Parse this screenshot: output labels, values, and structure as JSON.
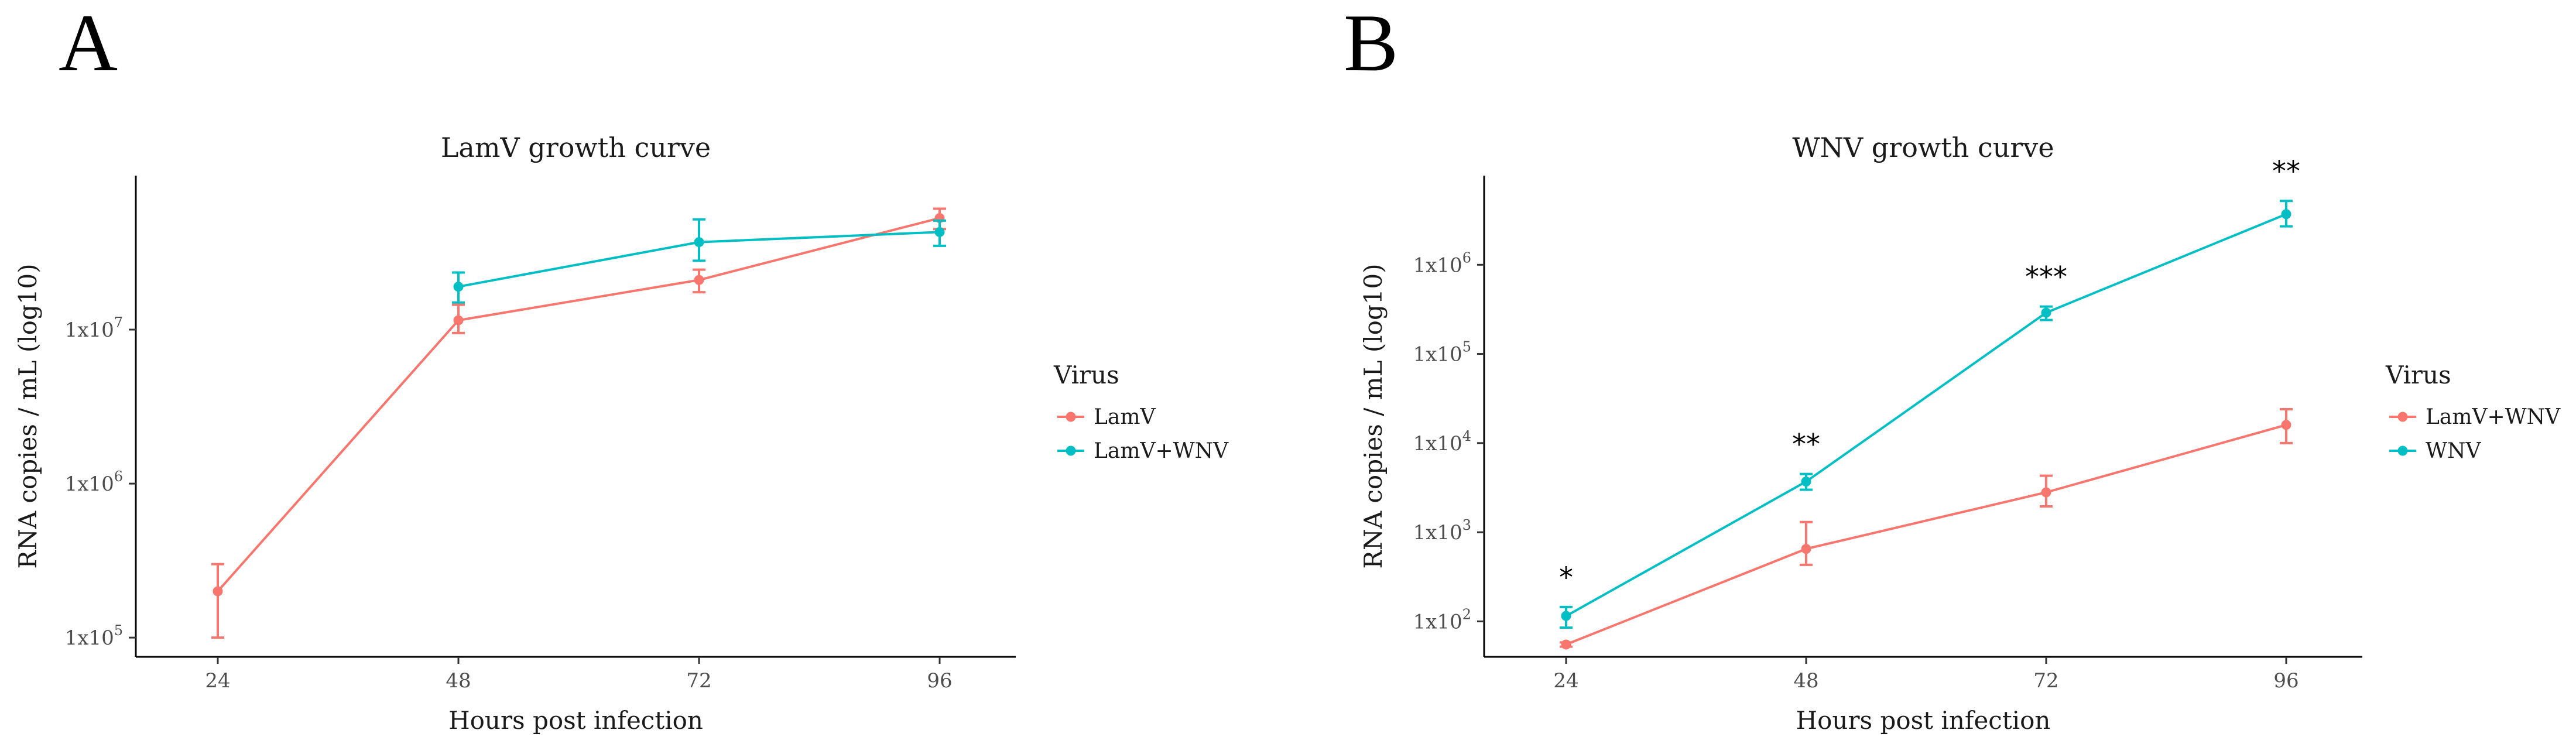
{
  "figure": {
    "panels": [
      "A",
      "B"
    ]
  },
  "chart_data": [
    {
      "panel": "A",
      "type": "line",
      "title": "LamV growth curve",
      "xlabel": "Hours post infection",
      "ylabel": "RNA copies / mL (log10)",
      "y_scale": "log10",
      "ylim": [
        75000,
        100000000
      ],
      "x_ticks": [
        24,
        48,
        72,
        96
      ],
      "y_ticks": [
        {
          "value": 100000,
          "base": "1x10",
          "exp": "5"
        },
        {
          "value": 1000000,
          "base": "1x10",
          "exp": "6"
        },
        {
          "value": 10000000,
          "base": "1x10",
          "exp": "7"
        }
      ],
      "legend": {
        "title": "Virus",
        "position": "right"
      },
      "series": [
        {
          "name": "LamV",
          "color": "#F8766D",
          "points": [
            {
              "x": 24,
              "y": 200000,
              "lower": 100000,
              "upper": 300000
            },
            {
              "x": 48,
              "y": 11500000,
              "lower": 9500000,
              "upper": 14500000
            },
            {
              "x": 72,
              "y": 21000000,
              "lower": 17500000,
              "upper": 24500000
            },
            {
              "x": 96,
              "y": 53000000,
              "lower": 45000000,
              "upper": 61000000
            }
          ]
        },
        {
          "name": "LamV+WNV",
          "color": "#00BFC4",
          "points": [
            {
              "x": 48,
              "y": 19000000,
              "lower": 15000000,
              "upper": 23500000
            },
            {
              "x": 72,
              "y": 37000000,
              "lower": 28000000,
              "upper": 52000000
            },
            {
              "x": 96,
              "y": 43000000,
              "lower": 35000000,
              "upper": 51000000
            }
          ]
        }
      ],
      "annotations": []
    },
    {
      "panel": "B",
      "type": "line",
      "title": "WNV growth curve",
      "xlabel": "Hours post infection",
      "ylabel": "RNA copies / mL (log10)",
      "y_scale": "log10",
      "ylim": [
        40,
        10000000
      ],
      "x_ticks": [
        24,
        48,
        72,
        96
      ],
      "y_ticks": [
        {
          "value": 100,
          "base": "1x10",
          "exp": "2"
        },
        {
          "value": 1000,
          "base": "1x10",
          "exp": "3"
        },
        {
          "value": 10000,
          "base": "1x10",
          "exp": "4"
        },
        {
          "value": 100000,
          "base": "1x10",
          "exp": "5"
        },
        {
          "value": 1000000,
          "base": "1x10",
          "exp": "6"
        }
      ],
      "legend": {
        "title": "Virus",
        "position": "right"
      },
      "series": [
        {
          "name": "LamV+WNV",
          "color": "#F8766D",
          "points": [
            {
              "x": 24,
              "y": 55,
              "lower": 52,
              "upper": 58
            },
            {
              "x": 48,
              "y": 650,
              "lower": 430,
              "upper": 1300
            },
            {
              "x": 72,
              "y": 2800,
              "lower": 1950,
              "upper": 4300
            },
            {
              "x": 96,
              "y": 16000,
              "lower": 10000,
              "upper": 24000
            }
          ]
        },
        {
          "name": "WNV",
          "color": "#00BFC4",
          "points": [
            {
              "x": 24,
              "y": 115,
              "lower": 85,
              "upper": 145
            },
            {
              "x": 48,
              "y": 3700,
              "lower": 3000,
              "upper": 4500
            },
            {
              "x": 72,
              "y": 290000,
              "lower": 240000,
              "upper": 340000
            },
            {
              "x": 96,
              "y": 3700000,
              "lower": 2700000,
              "upper": 5200000
            }
          ]
        }
      ],
      "annotations": [
        {
          "x": 24,
          "text": "*"
        },
        {
          "x": 48,
          "text": "**"
        },
        {
          "x": 72,
          "text": "***"
        },
        {
          "x": 96,
          "text": "**"
        }
      ]
    }
  ]
}
